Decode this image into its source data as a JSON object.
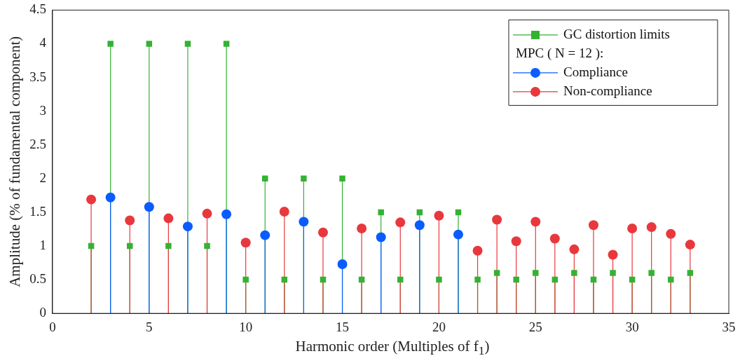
{
  "chart_data": {
    "type": "lollipop",
    "xlabel": "Harmonic order (Multiples of f$_{1}$)",
    "ylabel": "Amplitude (% of fundamental component)",
    "legend_title": "MPC ( N = 12 ):",
    "legend": "top right",
    "grid": false,
    "xlim": [
      0,
      35
    ],
    "xticks": [
      0,
      5,
      10,
      15,
      20,
      25,
      30,
      35
    ],
    "ylim": [
      0,
      4.5
    ],
    "yticks": [
      0,
      0.5,
      1,
      1.5,
      2,
      2.5,
      3,
      3.5,
      4,
      4.5
    ],
    "series": [
      {
        "name": "GC distortion limits",
        "color": "#33b233",
        "marker": "square",
        "x": [
          2,
          3,
          4,
          5,
          6,
          7,
          8,
          9,
          10,
          11,
          12,
          13,
          14,
          15,
          16,
          17,
          18,
          19,
          20,
          21,
          22,
          23,
          24,
          25,
          26,
          27,
          28,
          29,
          30,
          31,
          32,
          33
        ],
        "values": [
          1,
          4,
          1,
          4,
          1,
          4,
          1,
          4,
          0.5,
          2,
          0.5,
          2,
          0.5,
          2,
          0.5,
          1.5,
          0.5,
          1.5,
          0.5,
          1.5,
          0.5,
          0.6,
          0.5,
          0.6,
          0.5,
          0.6,
          0.5,
          0.6,
          0.5,
          0.6,
          0.5,
          0.6
        ]
      },
      {
        "name": "Compliance",
        "color": "#0a5cff",
        "marker": "circle",
        "x": [
          3,
          5,
          7,
          9,
          11,
          13,
          15,
          17,
          19,
          21
        ],
        "values": [
          1.72,
          1.58,
          1.29,
          1.47,
          1.16,
          1.36,
          0.73,
          1.13,
          1.31,
          1.17
        ]
      },
      {
        "name": "Non-compliance",
        "color": "#e8383d",
        "marker": "circle",
        "x": [
          2,
          4,
          6,
          8,
          10,
          12,
          14,
          16,
          18,
          20,
          22,
          23,
          24,
          25,
          26,
          27,
          28,
          29,
          30,
          31,
          32,
          33
        ],
        "values": [
          1.69,
          1.38,
          1.41,
          1.48,
          1.05,
          1.51,
          1.2,
          1.26,
          1.35,
          1.45,
          0.93,
          1.39,
          1.07,
          1.36,
          1.11,
          0.95,
          1.31,
          0.87,
          1.26,
          1.28,
          1.18,
          1.02
        ]
      }
    ]
  }
}
